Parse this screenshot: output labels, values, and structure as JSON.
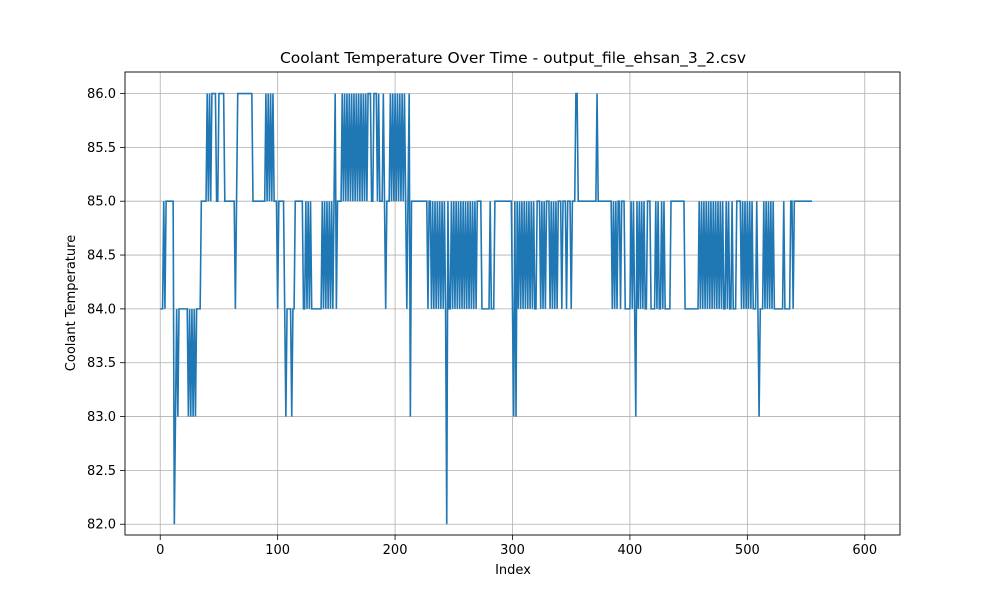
{
  "chart_data": {
    "type": "line",
    "title": "Coolant Temperature Over Time - output_file_ehsan_3_2.csv",
    "xlabel": "Index",
    "ylabel": "Coolant Temperature",
    "xlim": [
      -30,
      630
    ],
    "ylim": [
      81.9,
      86.2
    ],
    "grid": true,
    "x_ticks": [
      0,
      100,
      200,
      300,
      400,
      500,
      600
    ],
    "y_ticks": [
      82.0,
      82.5,
      83.0,
      83.5,
      84.0,
      84.5,
      85.0,
      85.5,
      86.0
    ],
    "x_tick_labels": [
      "0",
      "100",
      "200",
      "300",
      "400",
      "500",
      "600"
    ],
    "y_tick_labels": [
      "82.0",
      "82.5",
      "83.0",
      "83.5",
      "84.0",
      "84.5",
      "85.0",
      "85.5",
      "86.0"
    ],
    "colors": {
      "line": "#1f77b4",
      "grid": "#b0b0b0"
    },
    "series": [
      {
        "values": [
          84,
          84,
          84,
          85,
          84,
          85,
          85,
          85,
          85,
          85,
          85,
          85,
          82,
          83,
          84,
          83,
          84,
          84,
          84,
          84,
          84,
          84,
          84,
          84,
          83,
          84,
          83,
          84,
          83,
          84,
          83,
          84,
          84,
          84,
          84,
          85,
          85,
          85,
          85,
          85,
          86,
          85,
          86,
          85,
          86,
          86,
          86,
          86,
          85,
          85,
          86,
          86,
          86,
          86,
          86,
          85,
          85,
          85,
          85,
          85,
          85,
          85,
          85,
          85,
          84,
          85,
          86,
          86,
          86,
          86,
          86,
          86,
          86,
          86,
          86,
          86,
          86,
          86,
          86,
          85,
          85,
          85,
          85,
          85,
          85,
          85,
          85,
          85,
          85,
          85,
          86,
          85,
          86,
          85,
          86,
          85,
          86,
          85,
          85,
          85,
          84,
          85,
          85,
          85,
          85,
          85,
          84,
          83,
          84,
          84,
          84,
          84,
          83,
          84,
          84,
          85,
          85,
          85,
          85,
          85,
          85,
          85,
          84,
          84,
          85,
          84,
          85,
          84,
          85,
          84,
          84,
          84,
          84,
          84,
          84,
          84,
          84,
          84,
          85,
          84,
          85,
          84,
          85,
          84,
          85,
          84,
          85,
          84,
          85,
          86,
          84,
          85,
          85,
          85,
          85,
          86,
          85,
          86,
          85,
          86,
          85,
          86,
          85,
          86,
          85,
          86,
          85,
          86,
          85,
          86,
          85,
          86,
          85,
          86,
          85,
          86,
          85,
          86,
          86,
          86,
          85,
          85,
          86,
          86,
          86,
          85,
          86,
          85,
          85,
          85,
          86,
          85,
          84,
          85,
          85,
          85,
          86,
          85,
          86,
          85,
          86,
          85,
          86,
          85,
          86,
          85,
          86,
          85,
          86,
          85,
          84,
          85,
          86,
          83,
          85,
          85,
          85,
          85,
          85,
          85,
          85,
          85,
          85,
          85,
          85,
          85,
          85,
          85,
          84,
          85,
          85,
          84,
          85,
          84,
          85,
          84,
          85,
          84,
          85,
          84,
          85,
          84,
          85,
          84,
          82,
          85,
          84,
          84,
          85,
          84,
          85,
          84,
          85,
          84,
          85,
          84,
          85,
          84,
          85,
          84,
          85,
          84,
          85,
          84,
          85,
          84,
          85,
          84,
          85,
          84,
          85,
          85,
          85,
          85,
          84,
          84,
          84,
          84,
          84,
          84,
          84,
          85,
          84,
          84,
          84,
          85,
          85,
          85,
          85,
          85,
          85,
          85,
          85,
          85,
          85,
          85,
          85,
          85,
          85,
          85,
          84,
          83,
          85,
          83,
          85,
          84,
          85,
          84,
          85,
          84,
          85,
          84,
          85,
          84,
          85,
          84,
          85,
          84,
          85,
          84,
          84,
          85,
          85,
          85,
          84,
          85,
          84,
          85,
          84,
          85,
          85,
          85,
          84,
          85,
          84,
          85,
          84,
          85,
          84,
          85,
          85,
          85,
          84,
          85,
          85,
          85,
          84,
          85,
          85,
          85,
          84,
          85,
          85,
          85,
          86,
          86,
          85,
          85,
          85,
          85,
          85,
          85,
          85,
          85,
          85,
          85,
          85,
          85,
          85,
          85,
          85,
          85,
          86,
          85,
          85,
          85,
          85,
          85,
          85,
          85,
          85,
          85,
          85,
          85,
          85,
          84,
          85,
          84,
          85,
          84,
          85,
          85,
          84,
          85,
          85,
          85,
          84,
          84,
          84,
          84,
          84,
          85,
          84,
          85,
          84,
          83,
          85,
          84,
          85,
          84,
          85,
          84,
          85,
          84,
          84,
          85,
          85,
          85,
          84,
          84,
          84,
          84,
          85,
          84,
          85,
          84,
          84,
          85,
          84,
          85,
          84,
          84,
          84,
          84,
          84,
          85,
          85,
          85,
          85,
          85,
          85,
          85,
          85,
          85,
          85,
          85,
          85,
          84,
          84,
          84,
          84,
          84,
          84,
          84,
          84,
          84,
          84,
          84,
          84,
          85,
          84,
          85,
          84,
          85,
          84,
          85,
          84,
          85,
          84,
          85,
          84,
          85,
          84,
          85,
          84,
          85,
          84,
          85,
          84,
          85,
          84,
          84,
          85,
          84,
          85,
          84,
          84,
          85,
          84,
          84,
          84,
          85,
          85,
          85,
          85,
          84,
          85,
          84,
          85,
          84,
          85,
          84,
          85,
          84,
          85,
          84,
          84,
          84,
          85,
          84,
          83,
          84,
          84,
          84,
          85,
          84,
          85,
          84,
          85,
          84,
          85,
          84,
          85,
          84,
          84,
          84,
          84,
          84,
          84,
          84,
          84,
          85,
          84,
          84,
          84,
          84,
          84,
          85,
          85,
          84,
          85,
          85,
          85,
          85,
          85,
          85,
          85,
          85,
          85,
          85,
          85,
          85,
          85,
          85,
          85,
          85
        ]
      }
    ]
  }
}
